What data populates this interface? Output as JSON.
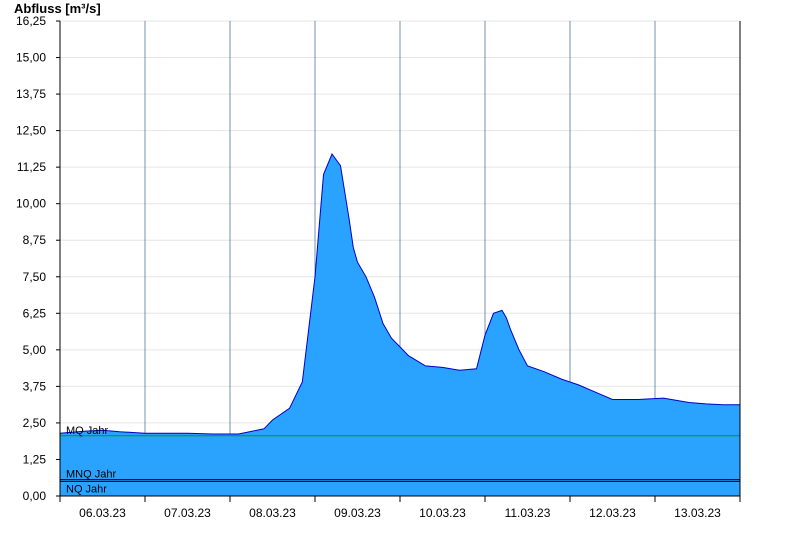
{
  "chart_data": {
    "type": "area",
    "ylabel": "Abfluss [m³/s]",
    "ylim": [
      0,
      16.25
    ],
    "yticks": [
      "0,00",
      "1,25",
      "2,50",
      "3,75",
      "5,00",
      "6,25",
      "7,50",
      "8,75",
      "10,00",
      "11,25",
      "12,50",
      "13,75",
      "15,00",
      "16,25"
    ],
    "ytick_values": [
      0,
      1.25,
      2.5,
      3.75,
      5.0,
      6.25,
      7.5,
      8.75,
      10.0,
      11.25,
      12.5,
      13.75,
      15.0,
      16.25
    ],
    "xticks": [
      "06.03.23",
      "07.03.23",
      "08.03.23",
      "09.03.23",
      "10.03.23",
      "11.03.23",
      "12.03.23",
      "13.03.23"
    ],
    "xlim_days": [
      -0.5,
      7.5
    ],
    "grid": true,
    "fill_color": "#29a3ff",
    "line_color": "#0000c8",
    "x_days": [
      -0.5,
      -0.2,
      0.0,
      0.2,
      0.5,
      0.8,
      1.0,
      1.3,
      1.6,
      1.9,
      2.0,
      2.2,
      2.35,
      2.5,
      2.6,
      2.7,
      2.8,
      2.9,
      2.95,
      3.0,
      3.1,
      3.2,
      3.3,
      3.4,
      3.5,
      3.6,
      3.8,
      4.0,
      4.2,
      4.4,
      4.5,
      4.6,
      4.7,
      4.75,
      4.8,
      4.9,
      5.0,
      5.2,
      5.4,
      5.6,
      5.8,
      6.0,
      6.3,
      6.6,
      6.9,
      7.1,
      7.3,
      7.5
    ],
    "values": [
      2.15,
      2.22,
      2.25,
      2.2,
      2.15,
      2.15,
      2.15,
      2.12,
      2.12,
      2.3,
      2.6,
      3.0,
      3.9,
      7.5,
      11.0,
      11.7,
      11.3,
      9.5,
      8.5,
      8.0,
      7.5,
      6.8,
      5.9,
      5.4,
      5.1,
      4.8,
      4.45,
      4.4,
      4.3,
      4.35,
      5.5,
      6.25,
      6.35,
      6.1,
      5.7,
      5.0,
      4.45,
      4.25,
      4.0,
      3.8,
      3.55,
      3.3,
      3.3,
      3.35,
      3.2,
      3.15,
      3.12,
      3.12
    ],
    "reference_lines": [
      {
        "label": "MQ Jahr",
        "value": 2.06,
        "color": "#00a000"
      },
      {
        "label": "MNQ Jahr",
        "value": 0.56,
        "color": "#000000"
      },
      {
        "label": "NQ Jahr",
        "value": 0.5,
        "color": "#000000"
      }
    ]
  }
}
